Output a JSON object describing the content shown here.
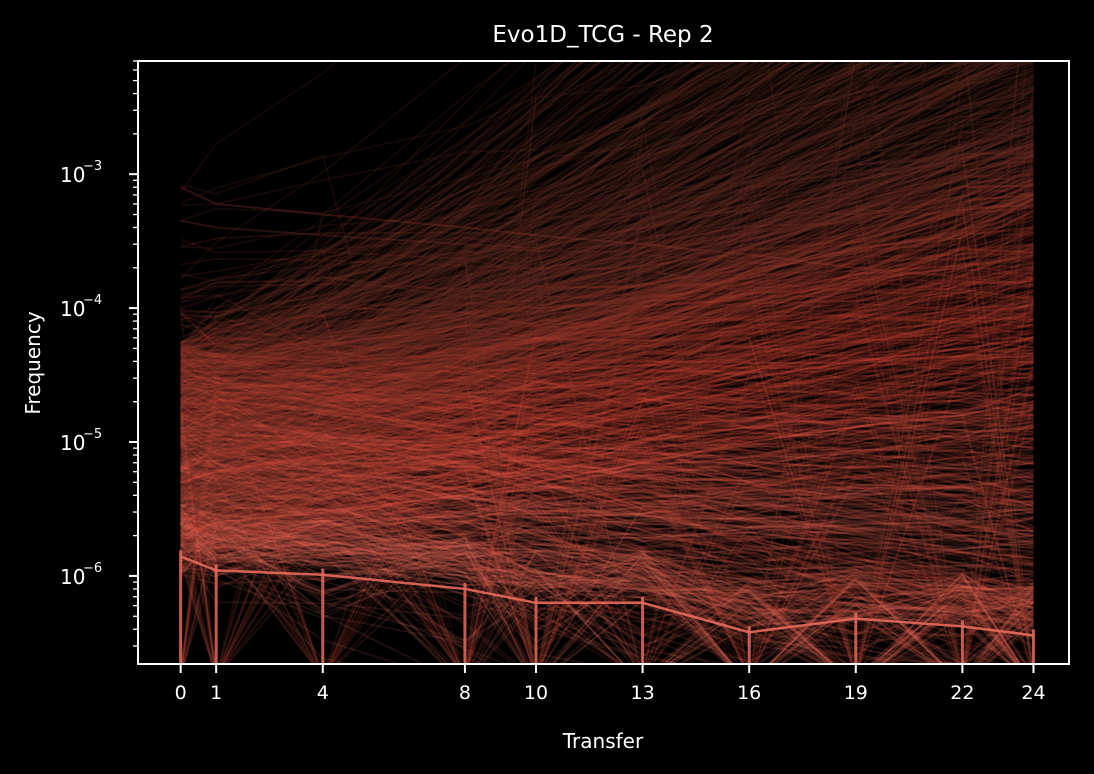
{
  "chart_data": {
    "type": "line",
    "title": "Evo1D_TCG - Rep 2",
    "xlabel": "Transfer",
    "ylabel": "Frequency",
    "yscale": "log",
    "xlim": [
      -1.2,
      25
    ],
    "ylim": [
      2.2e-07,
      0.007
    ],
    "x": [
      0,
      1,
      4,
      8,
      10,
      13,
      16,
      19,
      22,
      24
    ],
    "xtick_labels": [
      "0",
      "1",
      "4",
      "8",
      "10",
      "13",
      "16",
      "19",
      "22",
      "24"
    ],
    "yticks": [
      {
        "value": 1e-06,
        "base": "10",
        "exp": "−6"
      },
      {
        "value": 1e-05,
        "base": "10",
        "exp": "−5"
      },
      {
        "value": 0.0001,
        "base": "10",
        "exp": "−4"
      },
      {
        "value": 0.001,
        "base": "10",
        "exp": "−3"
      }
    ],
    "grid": false,
    "legend": "none",
    "colors": {
      "background": "#000000",
      "axes": "#ffffff",
      "line_high": "#5a2a22",
      "line_low": "#f07a6a",
      "line_mid": "#e04a3a",
      "detection_limit": "#e86a5c"
    },
    "detection_limit": [
      1.4e-06,
      1.1e-06,
      1.02e-06,
      8e-07,
      6.3e-07,
      6.3e-07,
      3.8e-07,
      4.8e-07,
      4.2e-07,
      3.6e-07
    ],
    "series_representative": [
      {
        "values": [
          9e-05,
          8.5e-05,
          0.00017,
          0.00012,
          0.00015,
          0.00045,
          0.0008,
          0.0018,
          0.003,
          0.0045
        ]
      },
      {
        "values": [
          0.00045,
          0.0004,
          0.00035,
          0.0003,
          0.00028,
          0.0004,
          0.0006,
          0.0009,
          0.0013,
          0.0016
        ]
      },
      {
        "values": [
          0.0008,
          0.0006,
          0.0005,
          0.0004,
          0.00035,
          0.0003,
          0.00025,
          0.0002,
          0.00017,
          0.00015
        ]
      },
      {
        "values": [
          5e-05,
          4.5e-05,
          4e-05,
          4.5e-05,
          6e-05,
          0.0001,
          0.00018,
          0.00028,
          0.00035,
          0.0004
        ]
      },
      {
        "values": [
          2e-05,
          2.5e-05,
          2.8e-05,
          3.5e-05,
          4.5e-05,
          7e-05,
          0.00011,
          0.00016,
          0.0002,
          0.00025
        ]
      },
      {
        "values": [
          5e-06,
          6e-06,
          8e-06,
          1e-05,
          1.2e-05,
          2e-05,
          3e-05,
          4e-05,
          5e-05,
          6e-05
        ]
      },
      {
        "values": [
          2e-06,
          2.5e-06,
          3e-06,
          4e-06,
          5e-06,
          7e-06,
          1e-05,
          1.3e-05,
          1.6e-05,
          2e-05
        ]
      }
    ]
  }
}
